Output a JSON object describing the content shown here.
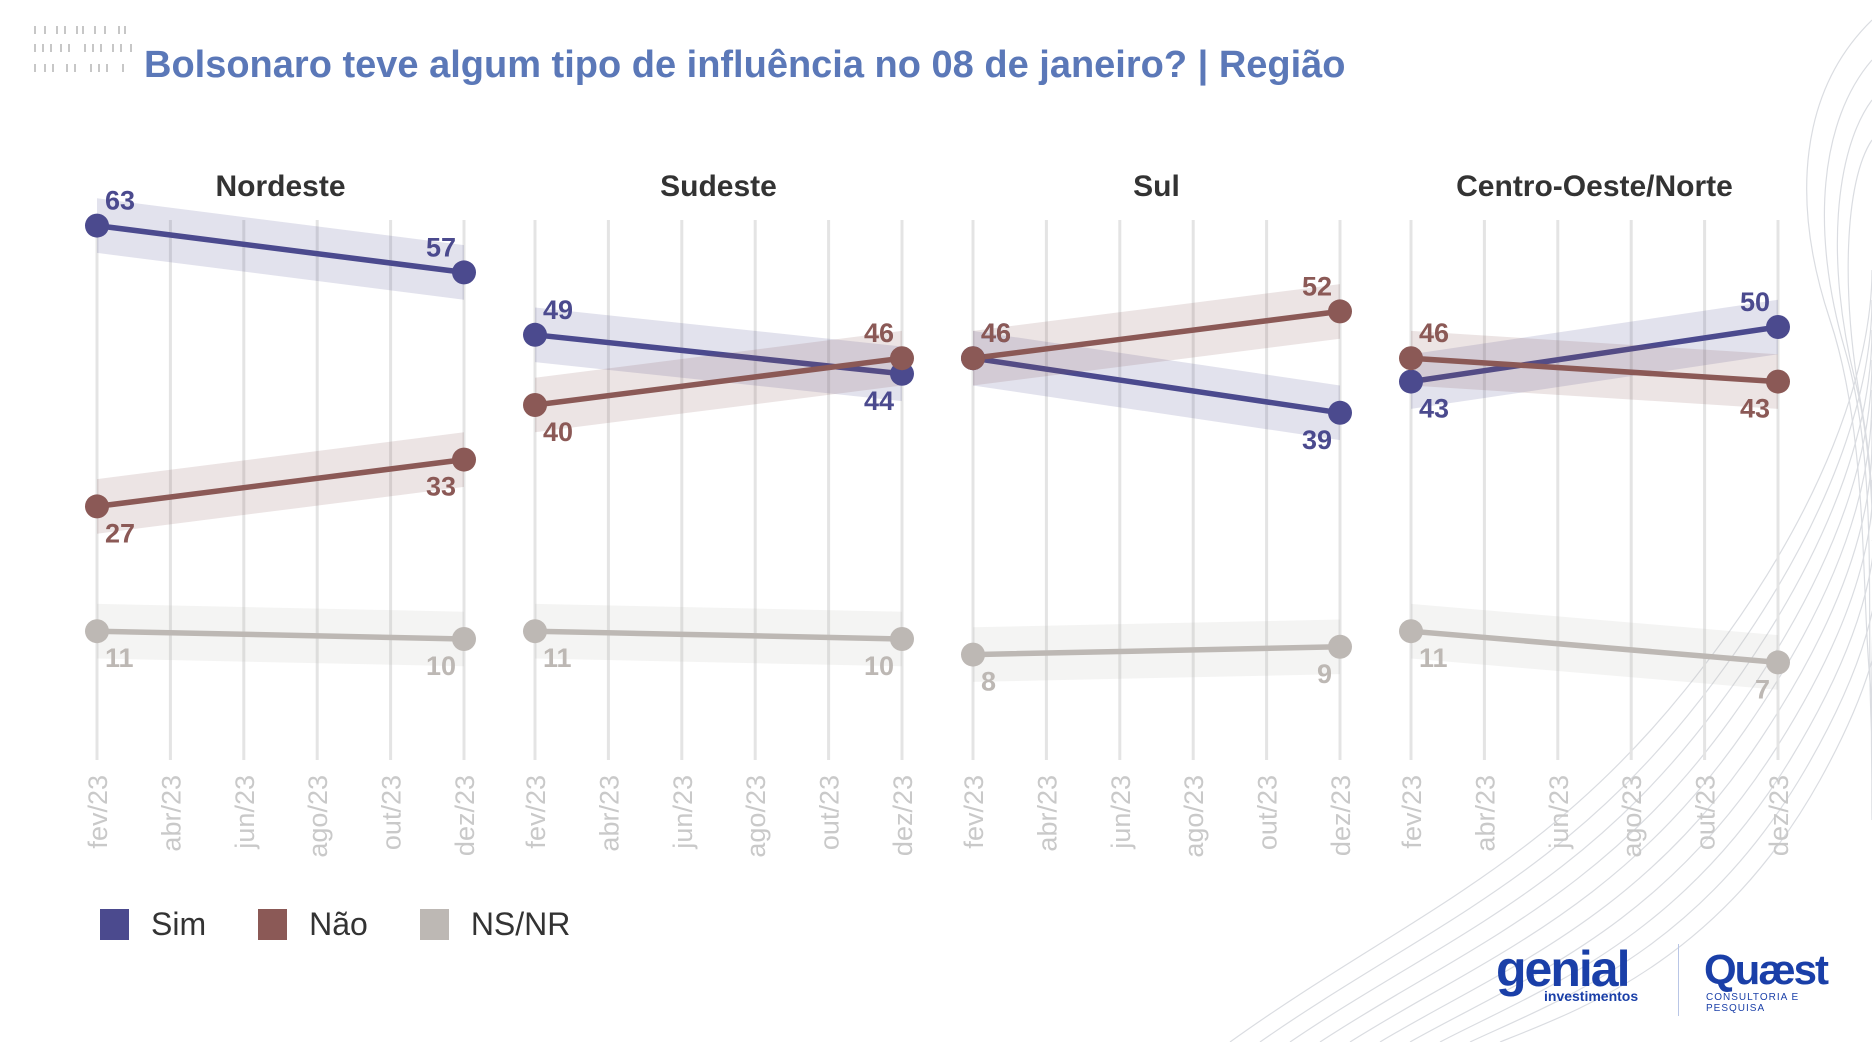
{
  "title": "Bolsonaro teve algum tipo de influência no 08 de janeiro? | Região",
  "colors": {
    "title": "#5b78b8",
    "Sim": "#4b4a8e",
    "Não": "#8b5956",
    "NS/NR": "#bdb8b4",
    "grid": "#e4e4e4",
    "tick": "#c9c9c9"
  },
  "legend": [
    {
      "label": "Sim",
      "color": "#4b4a8e"
    },
    {
      "label": "Não",
      "color": "#8b5956"
    },
    {
      "label": "NS/NR",
      "color": "#bdb8b4"
    }
  ],
  "logos": {
    "genial": "genial",
    "genial_sub": "investimentos",
    "quaest": "Quæst",
    "quaest_sub": "CONSULTORIA E PESQUISA"
  },
  "chart_data": [
    {
      "type": "line",
      "title": "Nordeste",
      "x_ticks": [
        "fev/23",
        "abr/23",
        "jun/23",
        "ago/23",
        "out/23",
        "dez/23"
      ],
      "x": [
        "fev/23",
        "dez/23"
      ],
      "series": [
        {
          "name": "Sim",
          "values": [
            63,
            57
          ]
        },
        {
          "name": "Não",
          "values": [
            27,
            33
          ]
        },
        {
          "name": "NS/NR",
          "values": [
            11,
            10
          ]
        }
      ]
    },
    {
      "type": "line",
      "title": "Sudeste",
      "x_ticks": [
        "fev/23",
        "abr/23",
        "jun/23",
        "ago/23",
        "out/23",
        "dez/23"
      ],
      "x": [
        "fev/23",
        "dez/23"
      ],
      "series": [
        {
          "name": "Sim",
          "values": [
            49,
            44
          ]
        },
        {
          "name": "Não",
          "values": [
            40,
            46
          ]
        },
        {
          "name": "NS/NR",
          "values": [
            11,
            10
          ]
        }
      ]
    },
    {
      "type": "line",
      "title": "Sul",
      "x_ticks": [
        "fev/23",
        "abr/23",
        "jun/23",
        "ago/23",
        "out/23",
        "dez/23"
      ],
      "x": [
        "fev/23",
        "dez/23"
      ],
      "series": [
        {
          "name": "Sim",
          "values": [
            46,
            39
          ]
        },
        {
          "name": "Não",
          "values": [
            46,
            52
          ]
        },
        {
          "name": "NS/NR",
          "values": [
            8,
            9
          ]
        }
      ]
    },
    {
      "type": "line",
      "title": "Centro-Oeste/Norte",
      "x_ticks": [
        "fev/23",
        "abr/23",
        "jun/23",
        "ago/23",
        "out/23",
        "dez/23"
      ],
      "x": [
        "fev/23",
        "dez/23"
      ],
      "series": [
        {
          "name": "Sim",
          "values": [
            43,
            50
          ]
        },
        {
          "name": "Não",
          "values": [
            46,
            43
          ]
        },
        {
          "name": "NS/NR",
          "values": [
            11,
            7
          ]
        }
      ]
    }
  ]
}
